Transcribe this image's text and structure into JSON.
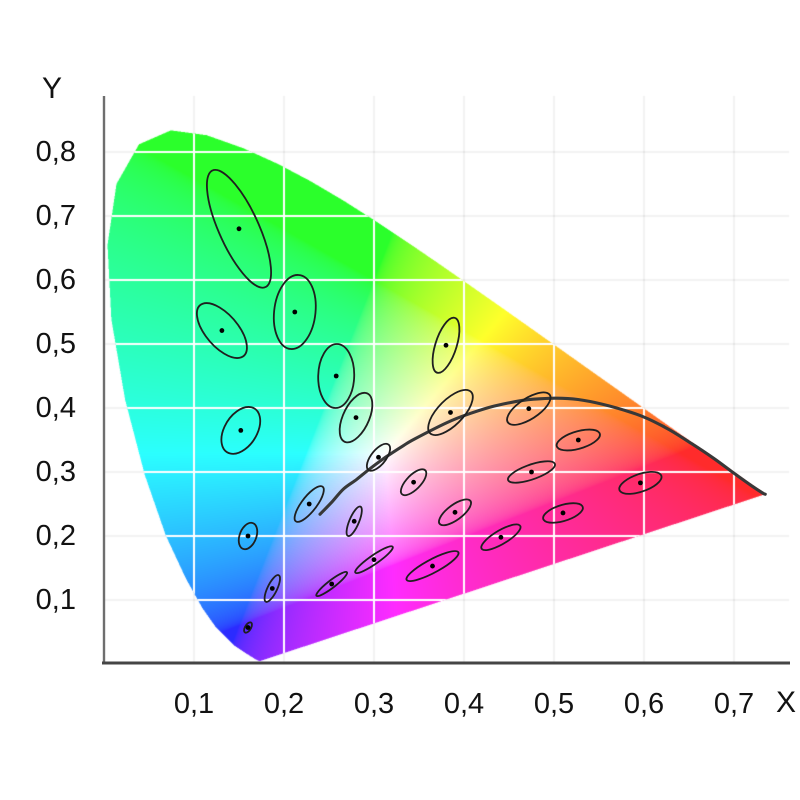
{
  "figure": {
    "background": "#ffffff"
  },
  "axis": {
    "x_title": "X",
    "y_title": "Y",
    "x_tick_labels": [
      "0,1",
      "0,2",
      "0,3",
      "0,4",
      "0,5",
      "0,6",
      "0,7"
    ],
    "y_tick_labels": [
      "0,1",
      "0,2",
      "0,3",
      "0,4",
      "0,5",
      "0,6",
      "0,7",
      "0,8"
    ]
  },
  "colors": {
    "background": "#ffffff",
    "grid_inside": "#ffffff",
    "grid_outside": "rgba(0,0,0,0.05)",
    "axis_line_left": "#6e6e6e",
    "axis_line_bottom": "#454545",
    "ellipse_stroke": "#1f1f1f",
    "dot": "#000000",
    "planckian_curve": "#383838",
    "text": "#121212"
  },
  "chart_data": {
    "type": "scatter",
    "subtype": "cie-1931-chromaticity-diagram",
    "xlabel": "X",
    "ylabel": "Y",
    "xlim": [
      0,
      0.77
    ],
    "ylim": [
      0,
      0.885
    ],
    "grid": true,
    "x_tick_values": [
      0.1,
      0.2,
      0.3,
      0.4,
      0.5,
      0.6,
      0.7
    ],
    "y_tick_values": [
      0.1,
      0.2,
      0.3,
      0.4,
      0.5,
      0.6,
      0.7,
      0.8
    ],
    "tick_label_decimal": "comma",
    "spectral_locus": [
      [
        0.1741,
        0.005
      ],
      [
        0.174,
        0.005
      ],
      [
        0.1738,
        0.0049
      ],
      [
        0.1736,
        0.0049
      ],
      [
        0.1733,
        0.0048
      ],
      [
        0.1726,
        0.0048
      ],
      [
        0.1714,
        0.0051
      ],
      [
        0.1689,
        0.0069
      ],
      [
        0.1644,
        0.0109
      ],
      [
        0.1566,
        0.0177
      ],
      [
        0.144,
        0.0297
      ],
      [
        0.1241,
        0.0578
      ],
      [
        0.1096,
        0.0868
      ],
      [
        0.0913,
        0.1327
      ],
      [
        0.0687,
        0.2007
      ],
      [
        0.0454,
        0.295
      ],
      [
        0.0235,
        0.4127
      ],
      [
        0.0082,
        0.5384
      ],
      [
        0.0039,
        0.6548
      ],
      [
        0.0139,
        0.7502
      ],
      [
        0.0389,
        0.812
      ],
      [
        0.0743,
        0.8338
      ],
      [
        0.1142,
        0.8262
      ],
      [
        0.1547,
        0.8059
      ],
      [
        0.1929,
        0.7816
      ],
      [
        0.2296,
        0.7543
      ],
      [
        0.2658,
        0.7243
      ],
      [
        0.3016,
        0.6923
      ],
      [
        0.3373,
        0.6589
      ],
      [
        0.3731,
        0.6245
      ],
      [
        0.4087,
        0.5896
      ],
      [
        0.4441,
        0.5547
      ],
      [
        0.4788,
        0.5202
      ],
      [
        0.5125,
        0.4866
      ],
      [
        0.5448,
        0.4544
      ],
      [
        0.5752,
        0.4242
      ],
      [
        0.6029,
        0.3965
      ],
      [
        0.627,
        0.3725
      ],
      [
        0.6482,
        0.3514
      ],
      [
        0.6658,
        0.334
      ],
      [
        0.6801,
        0.3197
      ],
      [
        0.6915,
        0.3083
      ],
      [
        0.7006,
        0.2993
      ],
      [
        0.7079,
        0.292
      ],
      [
        0.719,
        0.2809
      ],
      [
        0.726,
        0.274
      ],
      [
        0.73,
        0.27
      ],
      [
        0.732,
        0.268
      ],
      [
        0.7334,
        0.2666
      ],
      [
        0.7344,
        0.2656
      ],
      [
        0.7347,
        0.2653
      ]
    ],
    "planckian_locus": [
      [
        0.24,
        0.234
      ],
      [
        0.2525,
        0.252
      ],
      [
        0.2661,
        0.2735
      ],
      [
        0.2807,
        0.2884
      ],
      [
        0.2952,
        0.3048
      ],
      [
        0.3135,
        0.3237
      ],
      [
        0.3324,
        0.341
      ],
      [
        0.3451,
        0.3516
      ],
      [
        0.3805,
        0.3768
      ],
      [
        0.4053,
        0.3907
      ],
      [
        0.4369,
        0.4041
      ],
      [
        0.477,
        0.4137
      ],
      [
        0.5267,
        0.4133
      ],
      [
        0.5857,
        0.3932
      ],
      [
        0.6231,
        0.37
      ],
      [
        0.6526,
        0.3446
      ],
      [
        0.6776,
        0.3212
      ],
      [
        0.701,
        0.297
      ],
      [
        0.72,
        0.278
      ],
      [
        0.732,
        0.267
      ],
      [
        0.7347,
        0.2653
      ]
    ],
    "macadam_ellipses": [
      {
        "x": 0.16,
        "y": 0.057,
        "a": 0.0085,
        "b": 0.0035,
        "angle": 70
      },
      {
        "x": 0.187,
        "y": 0.118,
        "a": 0.022,
        "b": 0.0055,
        "angle": 72
      },
      {
        "x": 0.253,
        "y": 0.125,
        "a": 0.025,
        "b": 0.005,
        "angle": 48
      },
      {
        "x": 0.15,
        "y": 0.68,
        "a": 0.096,
        "b": 0.023,
        "angle": 107
      },
      {
        "x": 0.131,
        "y": 0.521,
        "a": 0.047,
        "b": 0.02,
        "angle": 117
      },
      {
        "x": 0.212,
        "y": 0.55,
        "a": 0.058,
        "b": 0.023,
        "angle": 86
      },
      {
        "x": 0.258,
        "y": 0.45,
        "a": 0.05,
        "b": 0.02,
        "angle": 89
      },
      {
        "x": 0.152,
        "y": 0.365,
        "a": 0.038,
        "b": 0.019,
        "angle": 72
      },
      {
        "x": 0.28,
        "y": 0.385,
        "a": 0.04,
        "b": 0.015,
        "angle": 74
      },
      {
        "x": 0.38,
        "y": 0.498,
        "a": 0.044,
        "b": 0.012,
        "angle": 78
      },
      {
        "x": 0.16,
        "y": 0.2,
        "a": 0.021,
        "b": 0.0095,
        "angle": 78
      },
      {
        "x": 0.228,
        "y": 0.25,
        "a": 0.031,
        "b": 0.009,
        "angle": 63
      },
      {
        "x": 0.305,
        "y": 0.323,
        "a": 0.023,
        "b": 0.009,
        "angle": 64
      },
      {
        "x": 0.385,
        "y": 0.393,
        "a": 0.04,
        "b": 0.016,
        "angle": 59
      },
      {
        "x": 0.472,
        "y": 0.399,
        "a": 0.032,
        "b": 0.014,
        "angle": 47
      },
      {
        "x": 0.527,
        "y": 0.35,
        "a": 0.026,
        "b": 0.013,
        "angle": 26
      },
      {
        "x": 0.475,
        "y": 0.3,
        "a": 0.029,
        "b": 0.011,
        "angle": 28
      },
      {
        "x": 0.51,
        "y": 0.236,
        "a": 0.024,
        "b": 0.012,
        "angle": 27
      },
      {
        "x": 0.596,
        "y": 0.283,
        "a": 0.026,
        "b": 0.013,
        "angle": 30
      },
      {
        "x": 0.344,
        "y": 0.284,
        "a": 0.023,
        "b": 0.009,
        "angle": 59
      },
      {
        "x": 0.39,
        "y": 0.237,
        "a": 0.025,
        "b": 0.01,
        "angle": 50
      },
      {
        "x": 0.441,
        "y": 0.198,
        "a": 0.028,
        "b": 0.0095,
        "angle": 42
      },
      {
        "x": 0.278,
        "y": 0.223,
        "a": 0.024,
        "b": 0.0055,
        "angle": 74
      },
      {
        "x": 0.3,
        "y": 0.163,
        "a": 0.029,
        "b": 0.006,
        "angle": 45
      },
      {
        "x": 0.365,
        "y": 0.153,
        "a": 0.036,
        "b": 0.0095,
        "angle": 38
      }
    ]
  }
}
